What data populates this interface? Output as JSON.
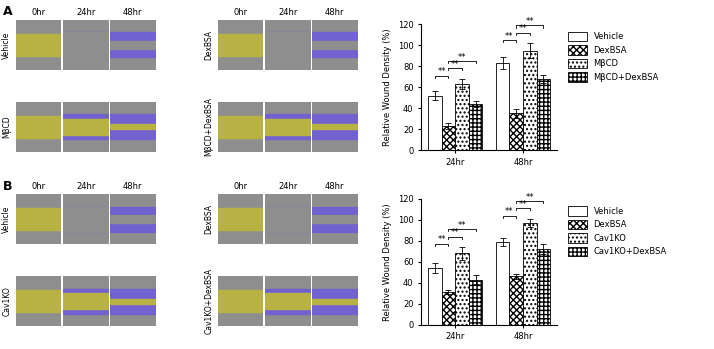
{
  "image_panels": [
    {
      "label": "A",
      "time_points": [
        "0hr",
        "24hr",
        "48hr"
      ],
      "groups": [
        [
          "Vehicle",
          "MβCD"
        ],
        [
          "DexBSA",
          "MβCD+DexBSA"
        ]
      ]
    },
    {
      "label": "B",
      "time_points": [
        "0hr",
        "24hr",
        "48hr"
      ],
      "groups": [
        [
          "Vehicle",
          "Cav1KO"
        ],
        [
          "DexBSA",
          "Cav1KO+DexBSA"
        ]
      ]
    }
  ],
  "chart_data": [
    {
      "type": "bar",
      "ylabel": "Relative Wound Density (%)",
      "categories": [
        "24hr",
        "48hr"
      ],
      "series": [
        {
          "name": "Vehicle",
          "color": "#ffffff",
          "values": [
            52,
            83
          ],
          "errors": [
            4,
            6
          ]
        },
        {
          "name": "DexBSA",
          "color": "#ffffff",
          "values": [
            23,
            35
          ],
          "errors": [
            3,
            4
          ]
        },
        {
          "name": "MβCD",
          "color": "#ffffff",
          "values": [
            63,
            95
          ],
          "errors": [
            5,
            7
          ]
        },
        {
          "name": "MβCD+DexBSA",
          "color": "#ffffff",
          "values": [
            44,
            68
          ],
          "errors": [
            3,
            4
          ]
        }
      ],
      "ylim": [
        0,
        120
      ],
      "yticks": [
        0,
        20,
        40,
        60,
        80,
        100,
        120
      ],
      "grid": false,
      "legend": "upper left",
      "annotations": [
        {
          "category": "24hr",
          "from": "Vehicle",
          "to": "DexBSA",
          "text": "**"
        },
        {
          "category": "24hr",
          "from": "DexBSA",
          "to": "MβCD",
          "text": "**"
        },
        {
          "category": "24hr",
          "from": "DexBSA",
          "to": "MβCD+DexBSA",
          "text": "**"
        },
        {
          "category": "48hr",
          "from": "Vehicle",
          "to": "DexBSA",
          "text": "**"
        },
        {
          "category": "48hr",
          "from": "DexBSA",
          "to": "MβCD",
          "text": "**"
        },
        {
          "category": "48hr",
          "from": "DexBSA",
          "to": "MβCD+DexBSA",
          "text": "**"
        }
      ]
    },
    {
      "type": "bar",
      "ylabel": "Relative Wound Density (%)",
      "categories": [
        "24hr",
        "48hr"
      ],
      "series": [
        {
          "name": "Vehicle",
          "color": "#ffffff",
          "values": [
            54,
            79
          ],
          "errors": [
            5,
            4
          ]
        },
        {
          "name": "DexBSA",
          "color": "#ffffff",
          "values": [
            31,
            46
          ],
          "errors": [
            2,
            2
          ]
        },
        {
          "name": "Cav1KO",
          "color": "#ffffff",
          "values": [
            68,
            97
          ],
          "errors": [
            6,
            4
          ]
        },
        {
          "name": "Cav1KO+DexBSA",
          "color": "#ffffff",
          "values": [
            43,
            72
          ],
          "errors": [
            4,
            5
          ]
        }
      ],
      "ylim": [
        0,
        120
      ],
      "yticks": [
        0,
        20,
        40,
        60,
        80,
        100,
        120
      ],
      "grid": false,
      "legend": "upper left",
      "annotations": [
        {
          "category": "24hr",
          "from": "Vehicle",
          "to": "DexBSA",
          "text": "**"
        },
        {
          "category": "24hr",
          "from": "DexBSA",
          "to": "Cav1KO",
          "text": "**"
        },
        {
          "category": "24hr",
          "from": "DexBSA",
          "to": "Cav1KO+DexBSA",
          "text": "**"
        },
        {
          "category": "48hr",
          "from": "Vehicle",
          "to": "DexBSA",
          "text": "**"
        },
        {
          "category": "48hr",
          "from": "DexBSA",
          "to": "Cav1KO",
          "text": "**"
        },
        {
          "category": "48hr",
          "from": "DexBSA",
          "to": "Cav1KO+DexBSA",
          "text": "**"
        }
      ]
    }
  ]
}
